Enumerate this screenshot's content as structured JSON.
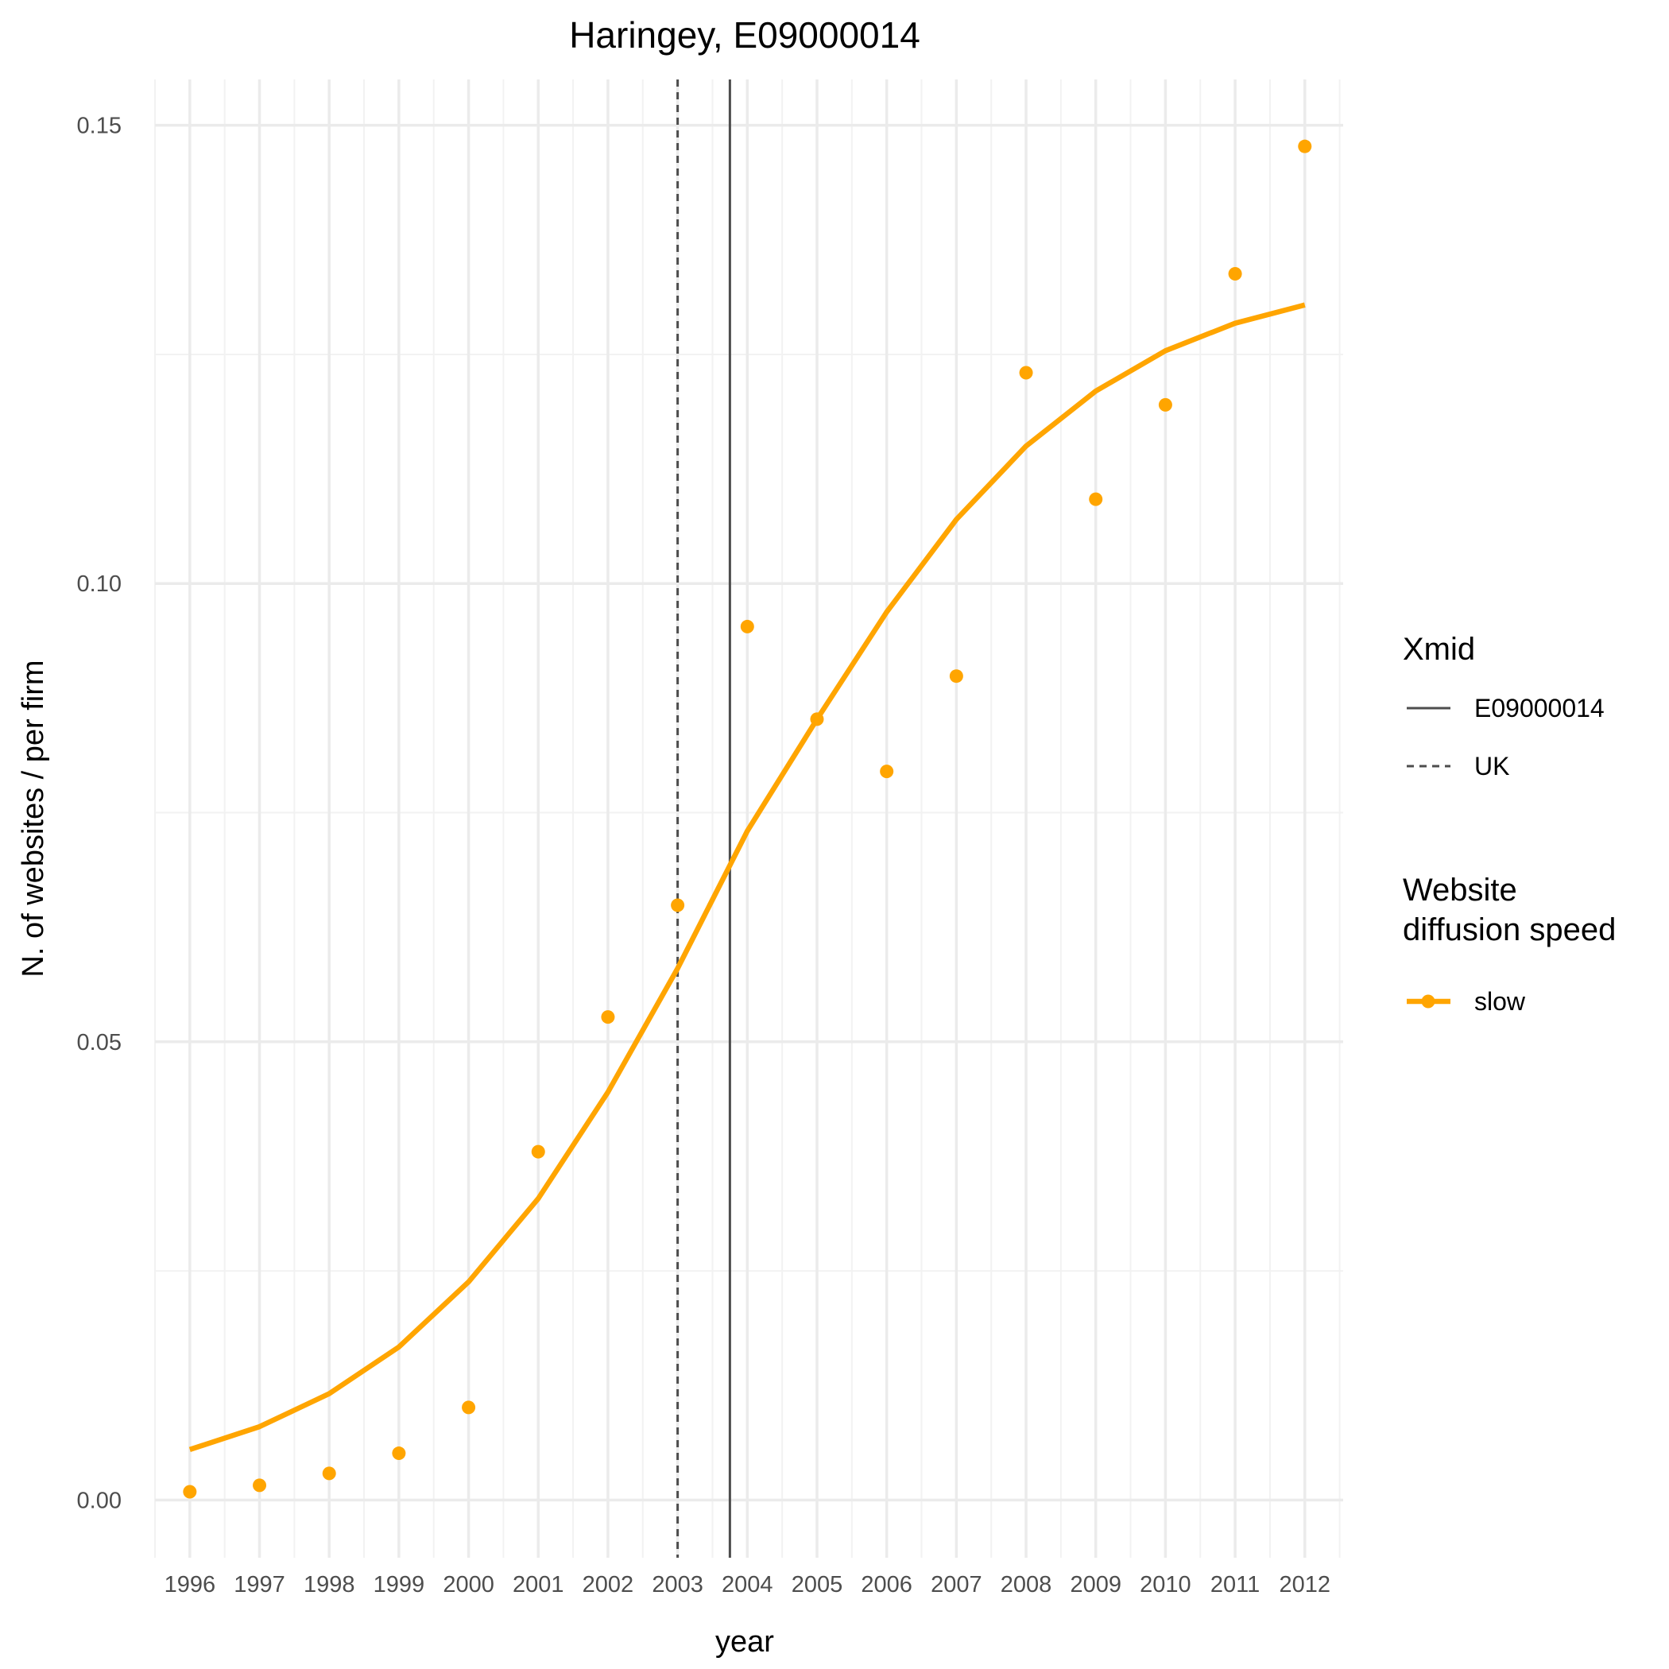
{
  "chart_data": {
    "type": "line",
    "title": "Haringey, E09000014",
    "xlabel": "year",
    "ylabel": "N. of websites / per firm",
    "x": [
      1996,
      1997,
      1998,
      1999,
      2000,
      2001,
      2002,
      2003,
      2004,
      2005,
      2006,
      2007,
      2008,
      2009,
      2010,
      2011,
      2012
    ],
    "x_tick_labels": [
      "1996",
      "1997",
      "1998",
      "1999",
      "2000",
      "2001",
      "2002",
      "2003",
      "2004",
      "2005",
      "2006",
      "2007",
      "2008",
      "2009",
      "2010",
      "2011",
      "2012"
    ],
    "y_ticks": [
      0.0,
      0.05,
      0.1,
      0.15
    ],
    "y_tick_labels": [
      "0.00",
      "0.05",
      "0.10",
      "0.15"
    ],
    "xlim": [
      1995.5,
      2012.55
    ],
    "ylim": [
      -0.0063,
      0.155
    ],
    "grid": true,
    "series": [
      {
        "name": "slow",
        "color": "#FFA500",
        "fitted": [
          0.0055,
          0.008,
          0.0116,
          0.0167,
          0.0238,
          0.0329,
          0.0445,
          0.058,
          0.073,
          0.0852,
          0.0969,
          0.107,
          0.115,
          0.121,
          0.1254,
          0.1284,
          0.1304
        ],
        "observed": [
          0.0009,
          0.0016,
          0.0029,
          0.0051,
          0.0101,
          0.038,
          0.0527,
          0.0649,
          0.0953,
          0.0852,
          0.0795,
          0.0899,
          0.123,
          0.1092,
          0.1195,
          0.1338,
          0.1477
        ]
      }
    ],
    "vlines": [
      {
        "name": "E09000014",
        "x": 2003.75,
        "style": "solid",
        "color": "#4d4d4d"
      },
      {
        "name": "UK",
        "x": 2003.0,
        "style": "dashed",
        "color": "#4d4d4d"
      }
    ],
    "legends": [
      {
        "title": "Xmid",
        "entries": [
          "E09000014",
          "UK"
        ]
      },
      {
        "title": "Website\ndiffusion speed",
        "entries": [
          "slow"
        ]
      }
    ],
    "legend_position": "right"
  }
}
